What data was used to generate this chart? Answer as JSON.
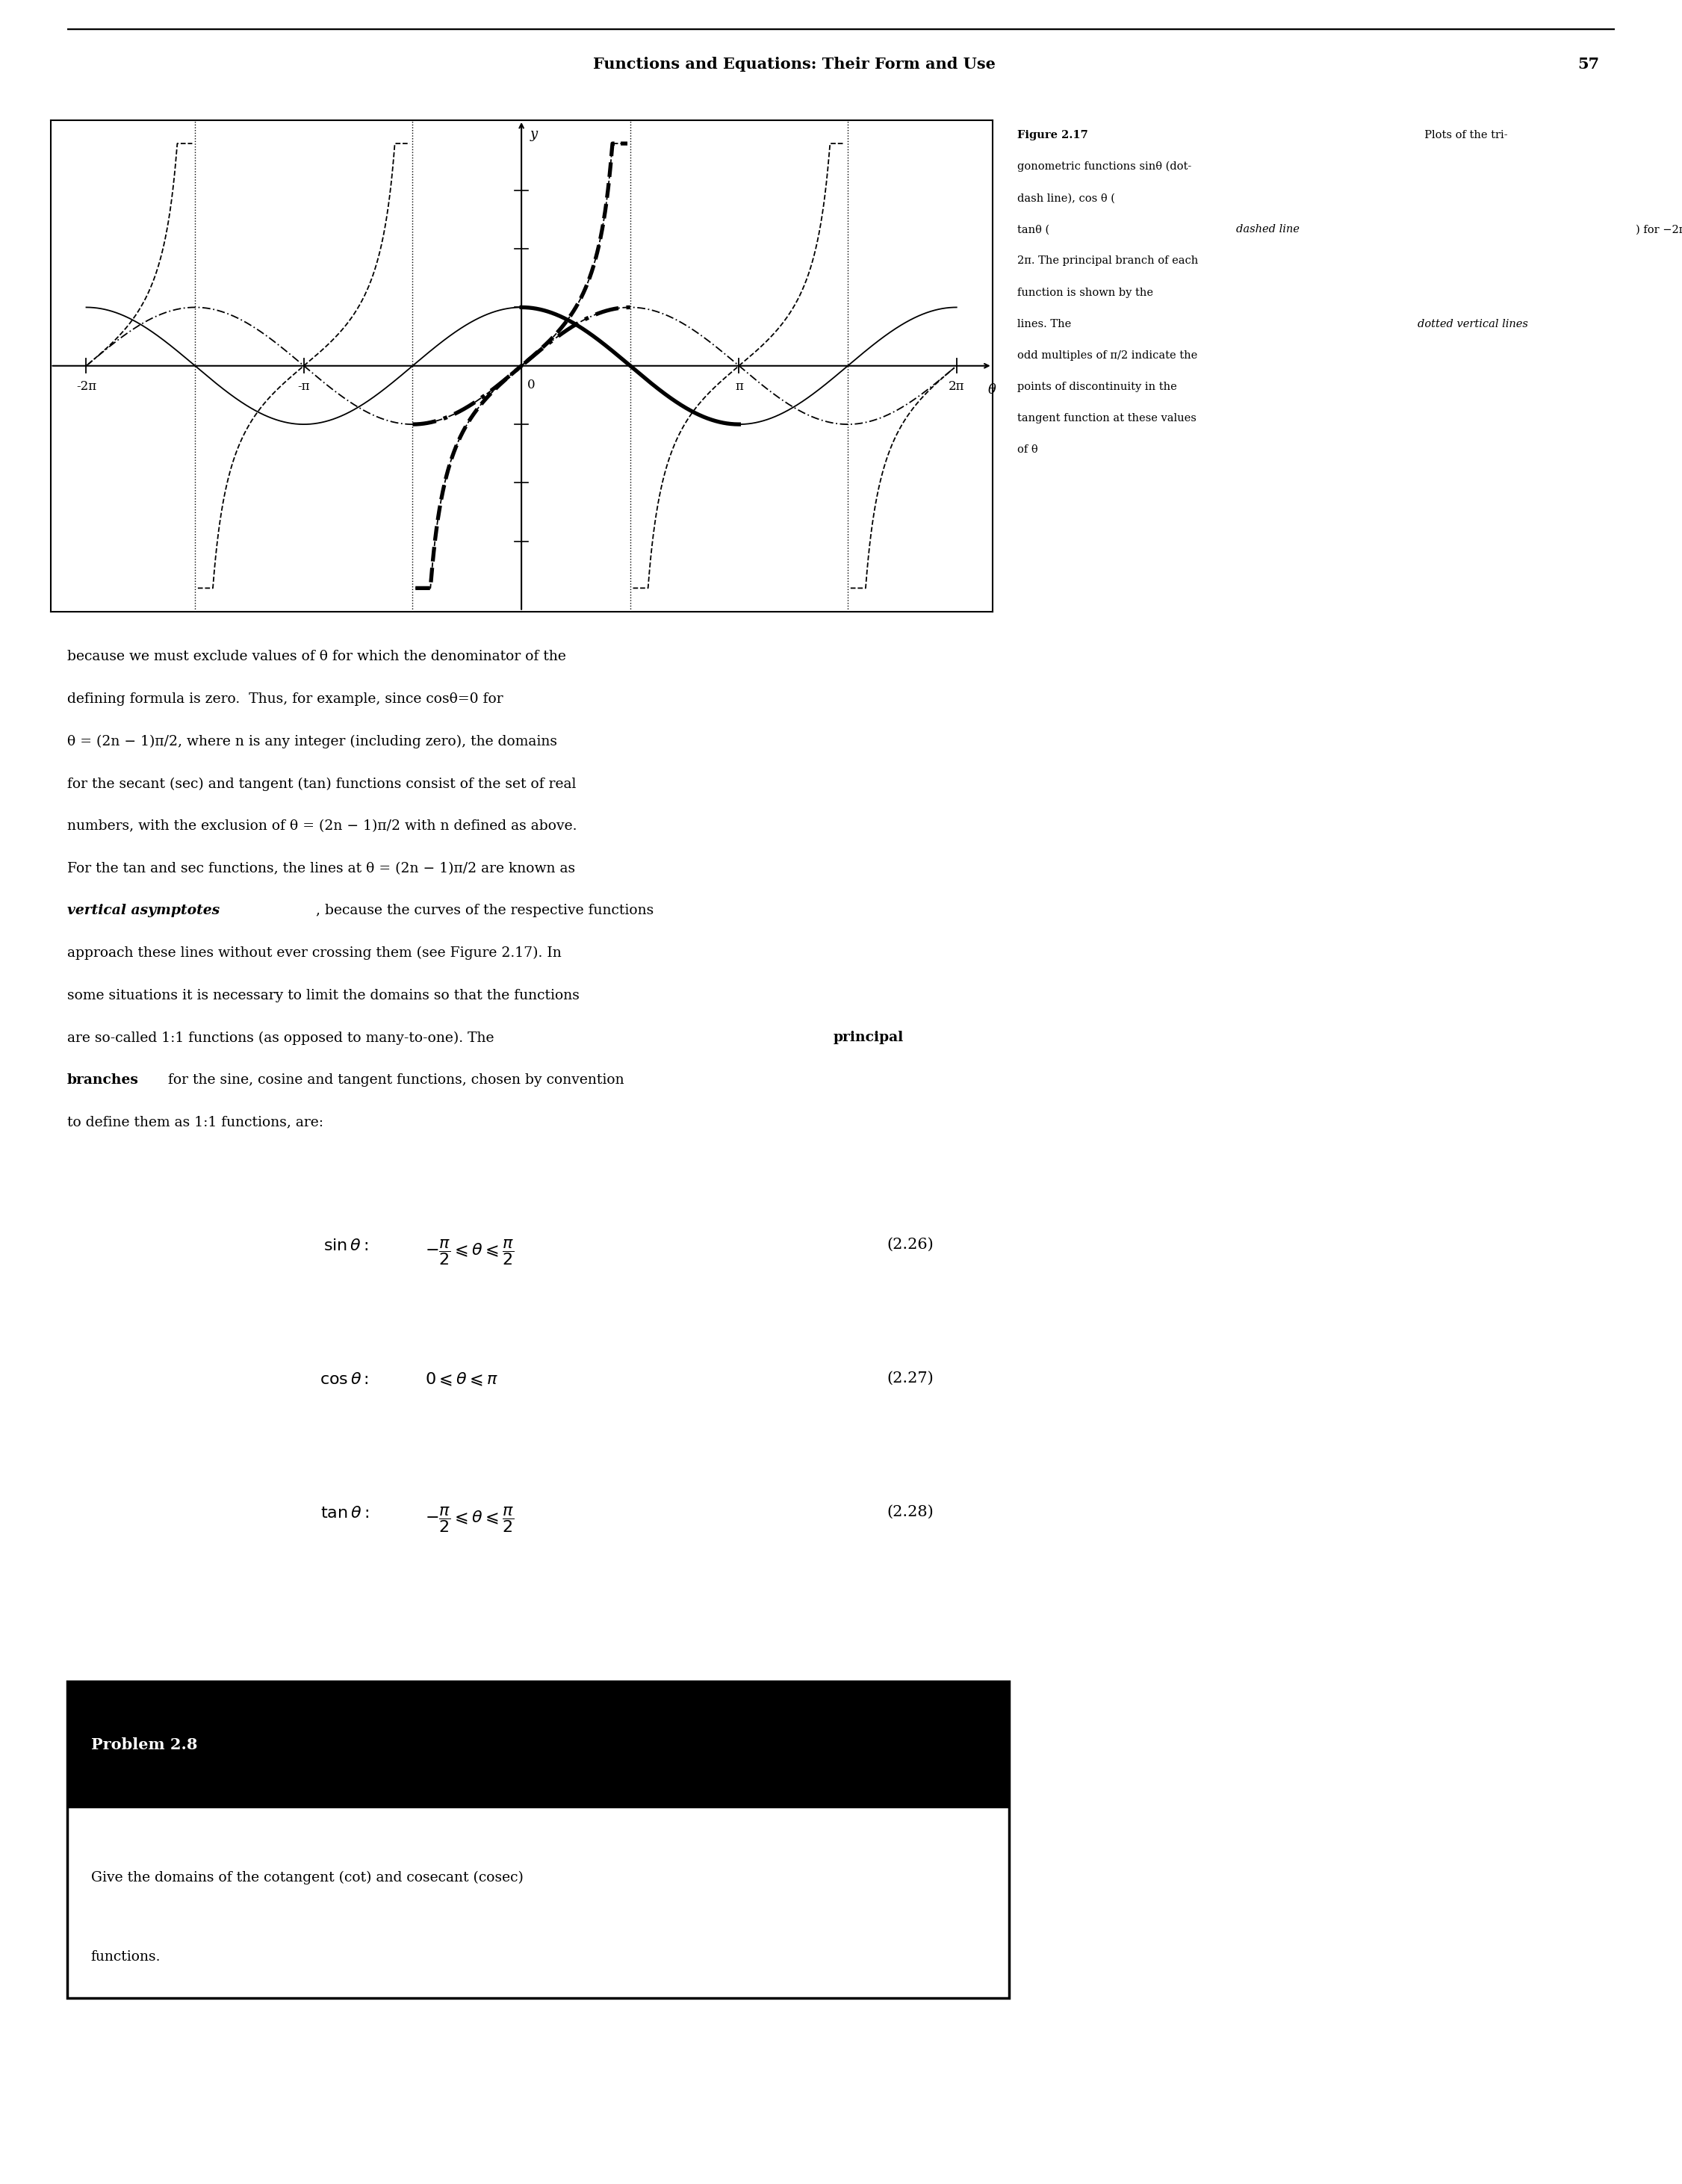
{
  "page_title": "Functions and Equations: Their Form and Use",
  "page_number": "57",
  "figure_label": "Figure 2.17",
  "xlim": [
    -6.8,
    6.8
  ],
  "ylim": [
    -4.2,
    4.2
  ],
  "y_axis_label": "y",
  "x_axis_label": "θ",
  "x_ticks_vals": [
    -6.283185307,
    -3.141592654,
    0,
    3.141592654,
    6.283185307
  ],
  "x_tick_labels": [
    "-2π",
    "-π",
    "0",
    "π",
    "2π"
  ],
  "tan_clip": 3.8,
  "vertical_lines": [
    -4.71238898,
    -1.5707963268,
    1.5707963268,
    4.71238898
  ],
  "principal_sin_range": [
    -1.5707963268,
    1.5707963268
  ],
  "principal_cos_range": [
    0.0,
    3.141592654
  ],
  "principal_tan_range": [
    -1.5707963268,
    1.5707963268
  ],
  "background_color": "#ffffff",
  "line_color": "#000000",
  "problem_title": "Problem 2.8",
  "problem_header_color": "#000000",
  "problem_header_text_color": "#ffffff"
}
